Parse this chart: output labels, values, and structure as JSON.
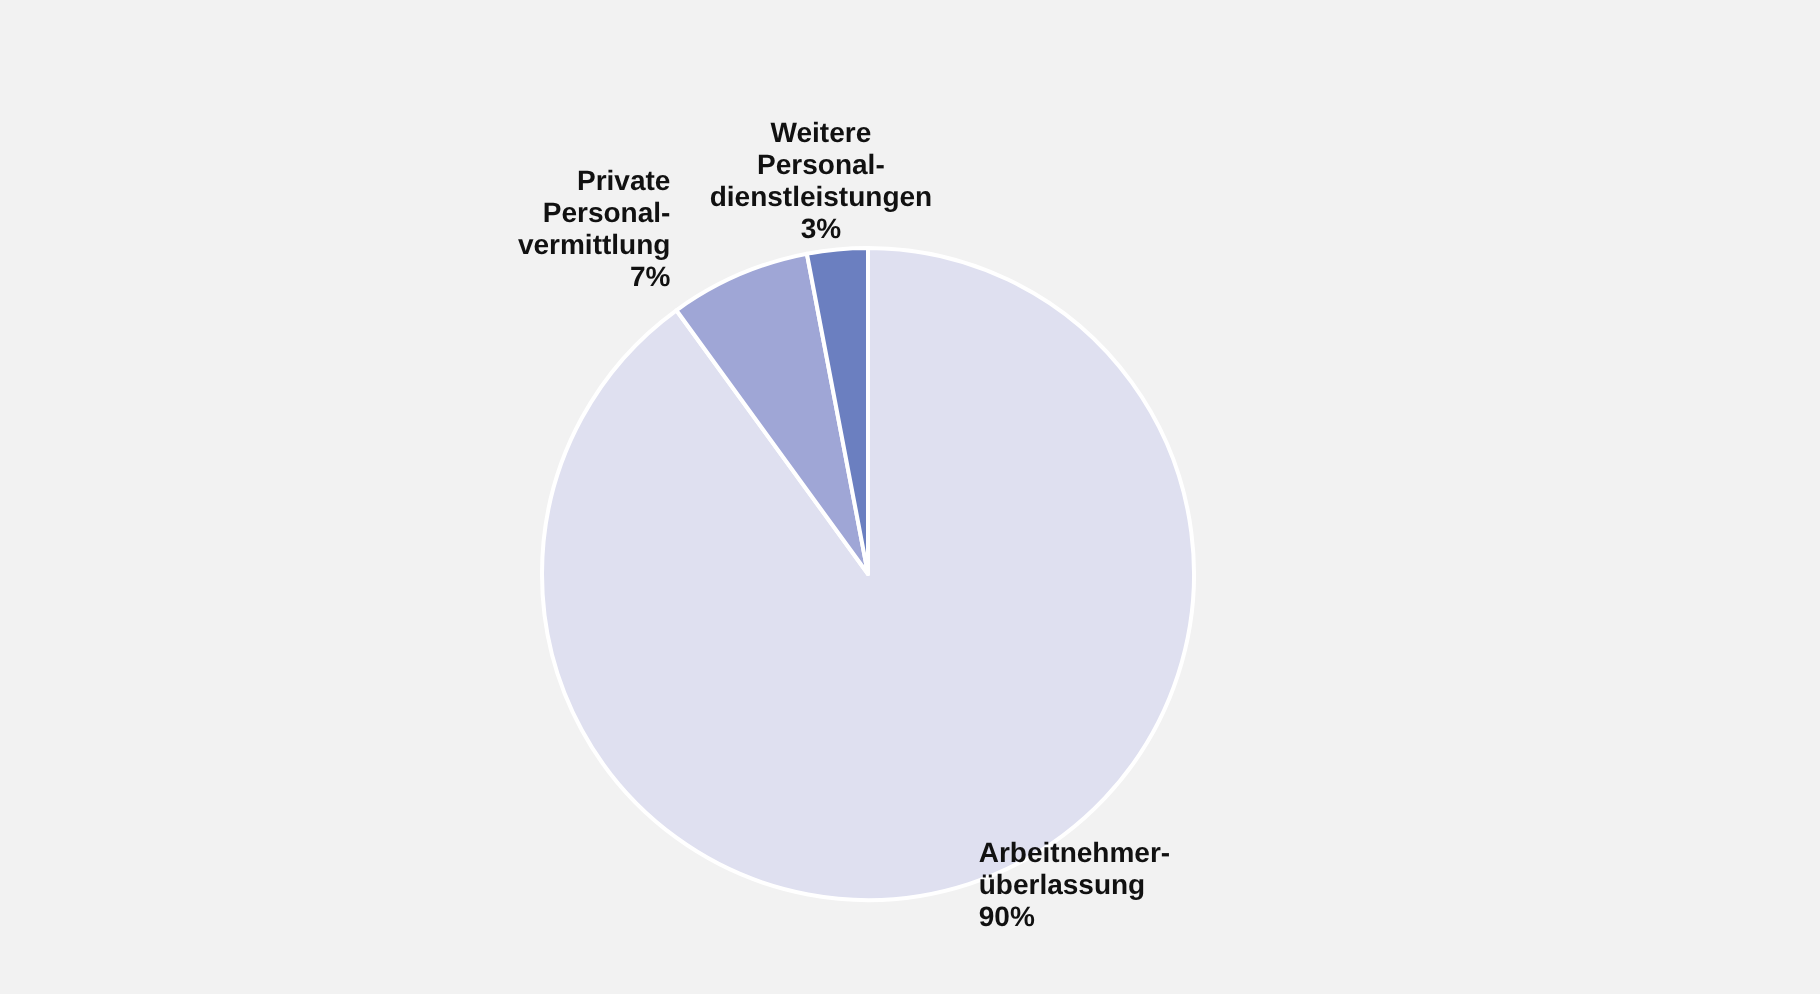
{
  "chart_data": {
    "type": "pie",
    "categories": [
      "Arbeitnehmer-überlassung",
      "Private Personal-vermittlung",
      "Weitere Personal-dienstleistungen"
    ],
    "values": [
      90,
      7,
      3
    ],
    "colors": [
      "#dfe0f0",
      "#9fa6d6",
      "#6b7fc0"
    ],
    "value_labels": [
      "90%",
      "7%",
      "3%"
    ],
    "legend": false
  }
}
